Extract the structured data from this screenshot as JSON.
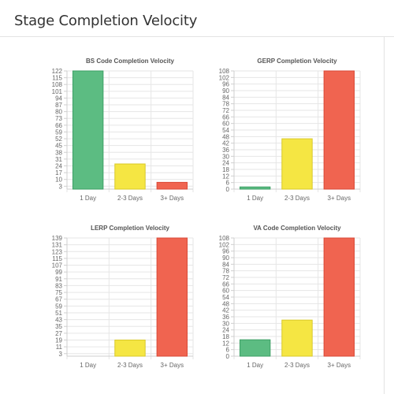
{
  "page": {
    "title": "Stage Completion Velocity"
  },
  "colors": {
    "green": "#5cbc82",
    "yellow": "#f5e643",
    "red": "#f06450",
    "green_border": "#3e9f66",
    "yellow_border": "#d9c92a",
    "red_border": "#d94a38",
    "grid": "#e6e6e6",
    "axis": "#cfcfcf"
  },
  "chart_data": [
    {
      "type": "bar",
      "title": "BS Code Completion Velocity",
      "categories": [
        "1 Day",
        "2-3 Days",
        "3+ Days"
      ],
      "values": [
        122,
        26,
        7
      ],
      "ylim": [
        0,
        122
      ],
      "yticks": [
        "3",
        "10",
        "17",
        "24",
        "31",
        "38",
        "45",
        "52",
        "59",
        "66",
        "73",
        "80",
        "87",
        "94",
        "101",
        "108",
        "115",
        "122"
      ],
      "ytick_values": [
        3,
        10,
        17,
        24,
        31,
        38,
        45,
        52,
        59,
        66,
        73,
        80,
        87,
        94,
        101,
        108,
        115,
        122
      ],
      "grid": true
    },
    {
      "type": "bar",
      "title": "GERP Completion Velocity",
      "categories": [
        "1 Day",
        "2-3 Days",
        "3+ Days"
      ],
      "values": [
        2,
        46,
        108
      ],
      "ylim": [
        0,
        108
      ],
      "yticks": [
        "0",
        "6",
        "12",
        "18",
        "24",
        "30",
        "36",
        "42",
        "48",
        "54",
        "60",
        "66",
        "72",
        "78",
        "84",
        "90",
        "96",
        "102",
        "108"
      ],
      "ytick_values": [
        0,
        6,
        12,
        18,
        24,
        30,
        36,
        42,
        48,
        54,
        60,
        66,
        72,
        78,
        84,
        90,
        96,
        102,
        108
      ],
      "grid": true
    },
    {
      "type": "bar",
      "title": "LERP Completion Velocity",
      "categories": [
        "1 Day",
        "2-3 Days",
        "3+ Days"
      ],
      "values": [
        0,
        19,
        139
      ],
      "ylim": [
        0,
        139
      ],
      "yticks": [
        "3",
        "11",
        "19",
        "27",
        "35",
        "43",
        "51",
        "59",
        "67",
        "75",
        "83",
        "91",
        "99",
        "107",
        "115",
        "123",
        "131",
        "139"
      ],
      "ytick_values": [
        3,
        11,
        19,
        27,
        35,
        43,
        51,
        59,
        67,
        75,
        83,
        91,
        99,
        107,
        115,
        123,
        131,
        139
      ],
      "grid": true
    },
    {
      "type": "bar",
      "title": "VA Code Completion Velocity",
      "categories": [
        "1 Day",
        "2-3 Days",
        "3+ Days"
      ],
      "values": [
        15,
        33,
        108
      ],
      "ylim": [
        0,
        108
      ],
      "yticks": [
        "0",
        "6",
        "12",
        "18",
        "24",
        "30",
        "36",
        "42",
        "48",
        "54",
        "60",
        "66",
        "72",
        "78",
        "84",
        "90",
        "96",
        "102",
        "108"
      ],
      "ytick_values": [
        0,
        6,
        12,
        18,
        24,
        30,
        36,
        42,
        48,
        54,
        60,
        66,
        72,
        78,
        84,
        90,
        96,
        102,
        108
      ],
      "grid": true
    }
  ]
}
